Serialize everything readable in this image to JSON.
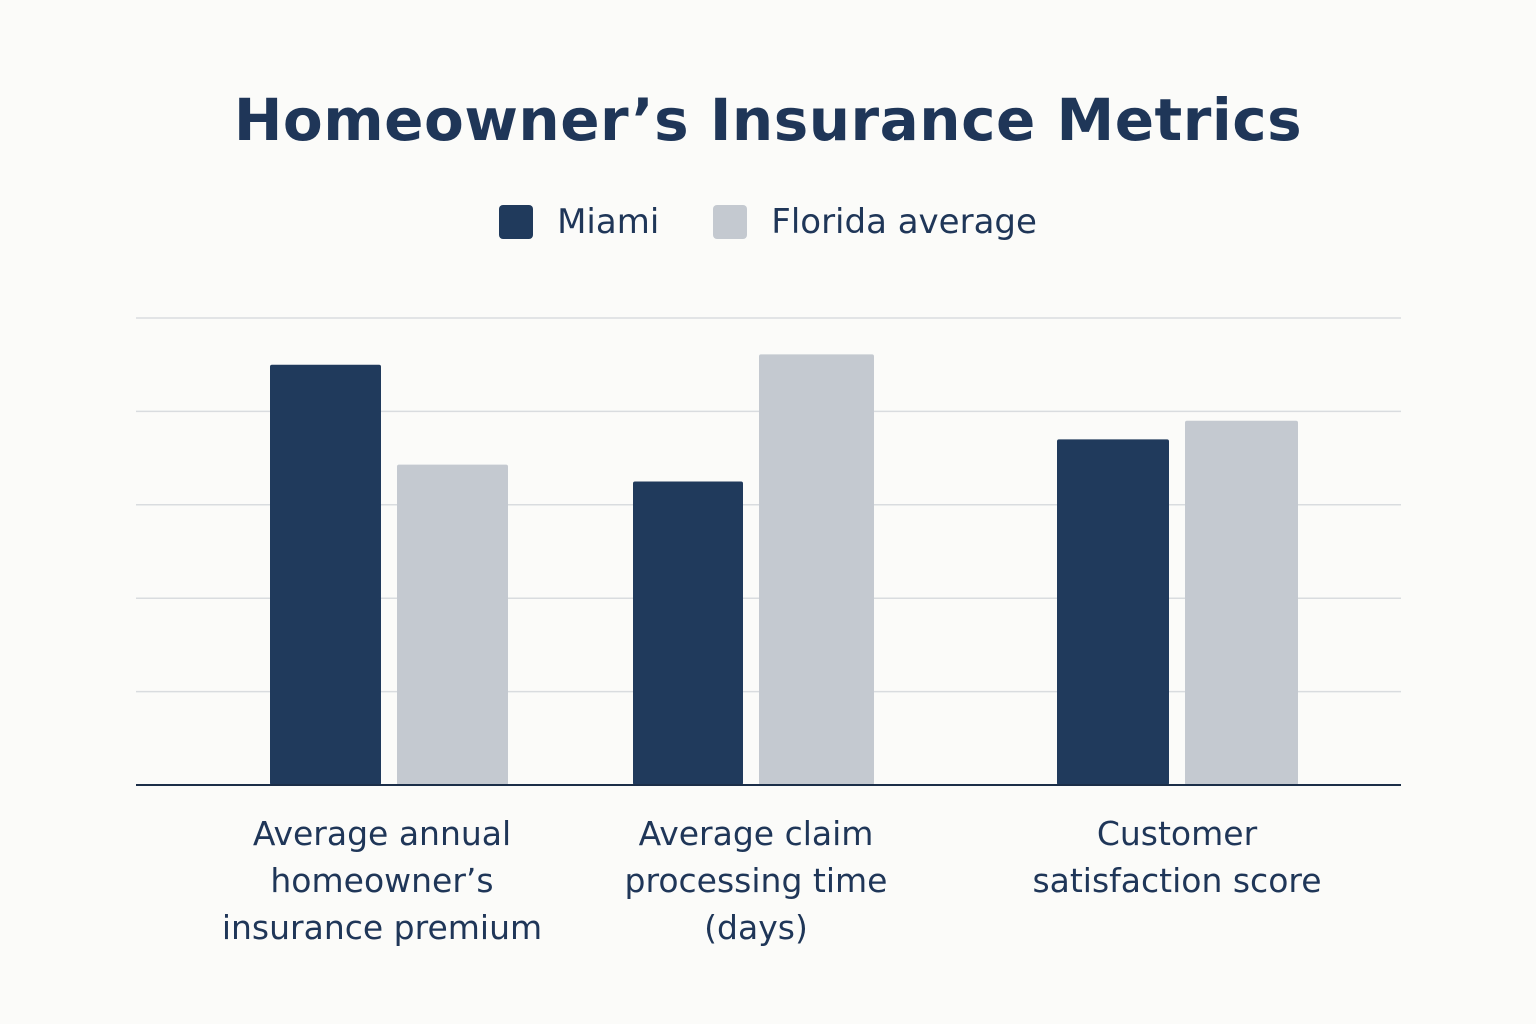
{
  "colors": {
    "miami": "#203a5c",
    "florida_average": "#c4c9d0",
    "grid": "#d9dcdf",
    "axis": "#1b2e48",
    "background": "#fbfbf9"
  },
  "chart_data": {
    "type": "bar",
    "title": "Homeowner’s Insurance Metrics",
    "xlabel": "",
    "ylabel": "",
    "legend_position": "top-center",
    "grid": true,
    "ylim": [
      0,
      5
    ],
    "y_gridlines": [
      1,
      2,
      3,
      4,
      5
    ],
    "categories": [
      "Average annual\nhomeowner’s\ninsurance premium",
      "Average claim\nprocessing time\n(days)",
      "Customer\nsatisfaction score"
    ],
    "series": [
      {
        "name": "Miami",
        "color_key": "miami",
        "values": [
          4.5,
          3.25,
          3.7
        ]
      },
      {
        "name": "Florida average",
        "color_key": "florida_average",
        "values": [
          3.43,
          4.61,
          3.9
        ]
      }
    ]
  }
}
